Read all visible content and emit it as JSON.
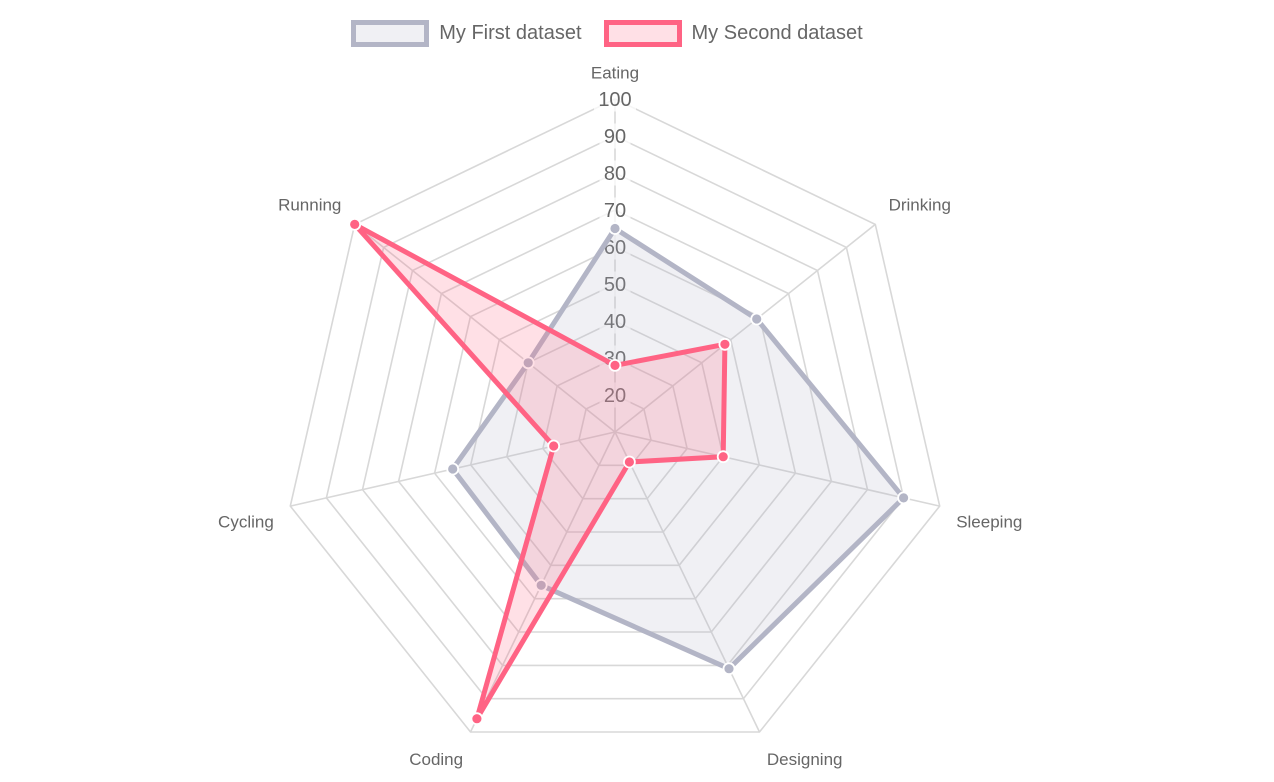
{
  "chart_data": {
    "type": "radar",
    "title": "",
    "categories": [
      "Eating",
      "Drinking",
      "Sleeping",
      "Designing",
      "Coding",
      "Cycling",
      "Running"
    ],
    "series": [
      {
        "name": "My First dataset",
        "values": [
          65,
          59,
          90,
          81,
          56,
          55,
          40
        ],
        "border_color": "#b3b5c6",
        "fill_color": "rgba(179,181,198,0.2)",
        "point_color": "#b3b5c6",
        "point_border_color": "#ffffff"
      },
      {
        "name": "My Second dataset",
        "values": [
          28,
          48,
          40,
          19,
          96,
          27,
          100
        ],
        "border_color": "#ff6384",
        "fill_color": "rgba(255,99,132,0.2)",
        "point_color": "#ff6384",
        "point_border_color": "#ffffff"
      }
    ],
    "scale": {
      "min": 10,
      "max": 100,
      "step": 10,
      "tick_labels": [
        "20",
        "30",
        "40",
        "50",
        "60",
        "70",
        "80",
        "90",
        "100"
      ],
      "grid_on": true,
      "grid_color": "#d8d8d8",
      "tick_color": "#666666",
      "tick_backdrop_color": "rgba(255,255,255,0.75)"
    },
    "legend_position": "top",
    "axis_label_color": "#666666"
  }
}
